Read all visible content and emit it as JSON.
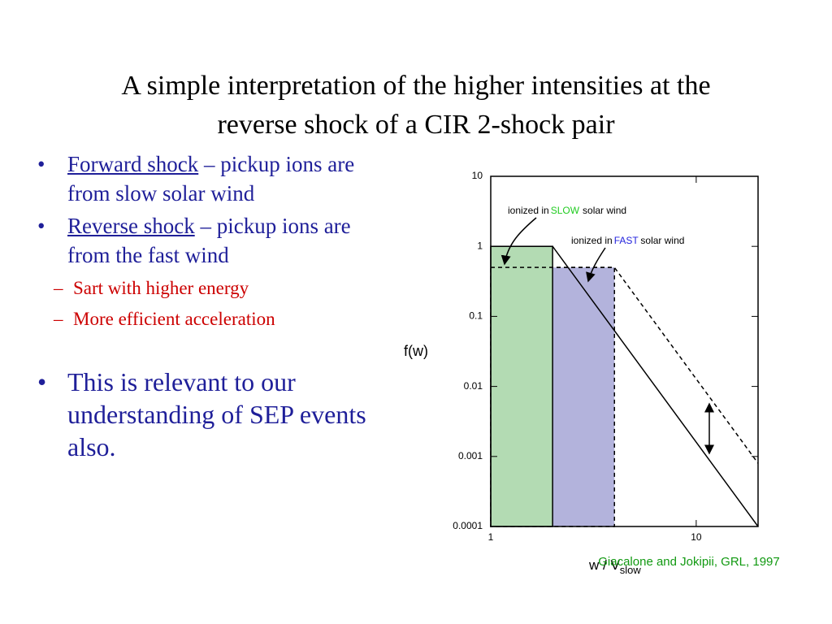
{
  "slide": {
    "title_lines": [
      "A simple interpretation of the higher intensities at the",
      "reverse shock of a CIR 2-shock pair"
    ],
    "bullets": [
      {
        "term": "Forward shock",
        "text": "– pickup ions are from slow solar wind"
      },
      {
        "term": "Reverse shock",
        "text": "– pickup ions are from the fast wind",
        "sub": [
          "Sart with higher energy",
          "More efficient acceleration"
        ]
      },
      {
        "text": "This is relevant to our understanding of SEP events also."
      }
    ]
  },
  "chart_data": {
    "type": "line",
    "x_label": "w / V",
    "x_label_sub": "slow",
    "y_label": "f(w)",
    "source": "Giacalone and Jokipii, GRL, 1997",
    "log_x": true,
    "log_y": true,
    "xlim": [
      1,
      20
    ],
    "xticks": [
      1,
      10
    ],
    "ylim": [
      0.0001,
      10
    ],
    "yticks": [
      0.0001,
      0.001,
      0.01,
      0.1,
      1,
      10
    ],
    "series": [
      {
        "color": "#000000",
        "fill": "#b3dbb3",
        "dashed": false,
        "x": [
          1,
          2,
          20
        ],
        "values": [
          1,
          1,
          0.0001
        ]
      },
      {
        "color": "#000000",
        "fill": "#b3b3dc",
        "dashed": true,
        "x": [
          1,
          4,
          20
        ],
        "values": [
          0.5,
          0.5,
          0.0008
        ]
      }
    ],
    "annotations": [
      {
        "prefix": "ionized in",
        "highlight": "SLOW",
        "suffix": "solar wind",
        "highlight_color": "#22cc22"
      },
      {
        "prefix": "ionized in",
        "highlight": "FAST",
        "suffix": "solar wind",
        "highlight_color": "#2222dd"
      }
    ]
  }
}
